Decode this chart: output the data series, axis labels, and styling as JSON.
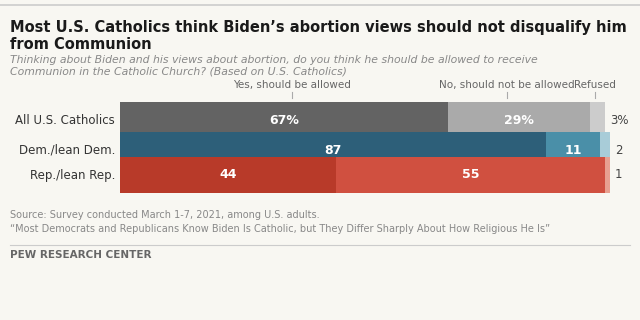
{
  "title_line1": "Most U.S. Catholics think Biden’s abortion views should not disqualify him",
  "title_line2": "from Communion",
  "subtitle_line1": "Thinking about Biden and his views about abortion, do you think he should be allowed to receive",
  "subtitle_line2": "Communion in the Catholic Church? (Based on U.S. Catholics)",
  "categories": [
    "All U.S. Catholics",
    "Dem./lean Dem.",
    "Rep./lean Rep."
  ],
  "yes_values": [
    67,
    87,
    44
  ],
  "no_values": [
    29,
    11,
    55
  ],
  "refused_values": [
    3,
    2,
    1
  ],
  "yes_labels": [
    "67%",
    "87",
    "44"
  ],
  "no_labels": [
    "29%",
    "11",
    "55"
  ],
  "refused_labels": [
    "3%",
    "2",
    "1"
  ],
  "yes_colors": [
    "#636363",
    "#2d5f79",
    "#b83a29"
  ],
  "no_colors": [
    "#aaaaaa",
    "#4a8fa8",
    "#d05040"
  ],
  "refused_colors": [
    "#cccccc",
    "#a8ccd8",
    "#e8a090"
  ],
  "col_header_yes": "Yes, should be allowed",
  "col_header_no": "No, should not be allowed",
  "col_header_refused": "Refused",
  "source_line1": "Source: Survey conducted March 1-7, 2021, among U.S. adults.",
  "source_line2": "“Most Democrats and Republicans Know Biden Is Catholic, but They Differ Sharply About How Religious He Is”",
  "footer": "PEW RESEARCH CENTER",
  "bg_color": "#f8f7f2",
  "title_color": "#1a1a1a",
  "subtitle_color": "#888888",
  "cat_label_color": "#333333",
  "bar_label_color_white": "#ffffff",
  "refused_label_color": "#444444",
  "header_label_color": "#666666",
  "source_color": "#888888",
  "footer_color": "#666666",
  "tick_color": "#aaaaaa"
}
